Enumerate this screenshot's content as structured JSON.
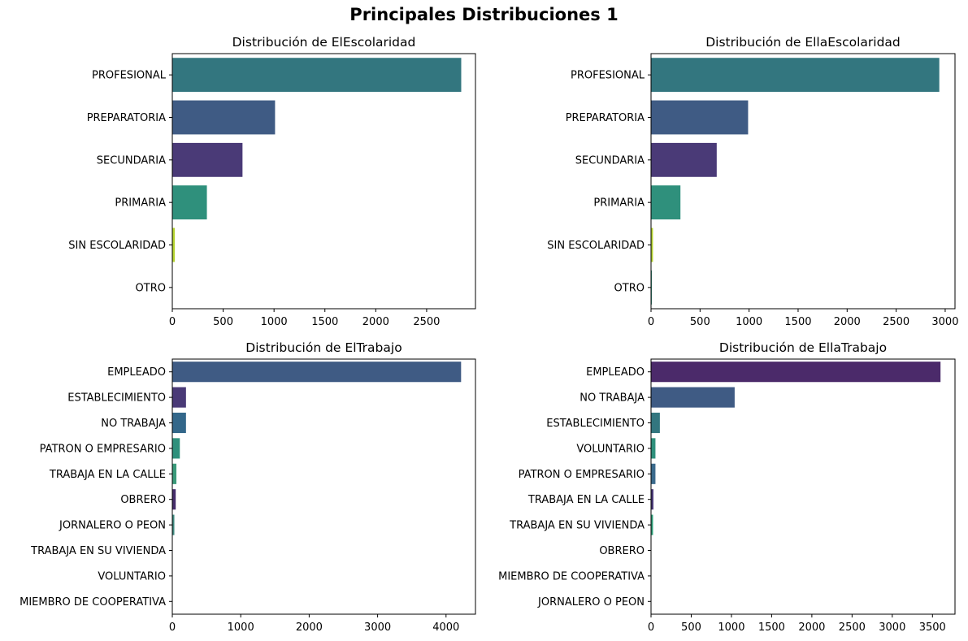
{
  "figure": {
    "title": "Principales Distribuciones 1"
  },
  "chart_data": [
    {
      "type": "bar",
      "orientation": "horizontal",
      "title": "Distribución de ElEscolaridad",
      "xlabel": "",
      "ylabel": "",
      "categories": [
        "PROFESIONAL",
        "PREPARATORIA",
        "SECUNDARIA",
        "PRIMARIA",
        "SIN ESCOLARIDAD",
        "OTRO"
      ],
      "values": [
        2840,
        1010,
        690,
        340,
        25,
        3
      ],
      "colors": [
        "#33767f",
        "#3f5b84",
        "#4a3a77",
        "#2f907c",
        "#b5d331",
        "#3a6a8c"
      ],
      "xlim": [
        0,
        2980
      ],
      "xticks": [
        0,
        500,
        1000,
        1500,
        2000,
        2500
      ]
    },
    {
      "type": "bar",
      "orientation": "horizontal",
      "title": "Distribución de EllaEscolaridad",
      "xlabel": "",
      "ylabel": "",
      "categories": [
        "PROFESIONAL",
        "PREPARATORIA",
        "SECUNDARIA",
        "PRIMARIA",
        "SIN ESCOLARIDAD",
        "OTRO"
      ],
      "values": [
        2940,
        990,
        670,
        300,
        20,
        8
      ],
      "colors": [
        "#33767f",
        "#3f5b84",
        "#4a3a77",
        "#2f907c",
        "#b5d331",
        "#2f907c"
      ],
      "xlim": [
        0,
        3100
      ],
      "xticks": [
        0,
        500,
        1000,
        1500,
        2000,
        2500,
        3000
      ]
    },
    {
      "type": "bar",
      "orientation": "horizontal",
      "title": "Distribución de ElTrabajo",
      "xlabel": "",
      "ylabel": "",
      "categories": [
        "EMPLEADO",
        "ESTABLECIMIENTO",
        "NO TRABAJA",
        "PATRON O EMPRESARIO",
        "TRABAJA EN LA CALLE",
        "OBRERO",
        "JORNALERO O PEON",
        "TRABAJA EN SU VIVIENDA",
        "VOLUNTARIO",
        "MIEMBRO DE COOPERATIVA"
      ],
      "values": [
        4220,
        200,
        200,
        110,
        60,
        50,
        30,
        3,
        2,
        1
      ],
      "colors": [
        "#3f5b84",
        "#4a3a77",
        "#33678a",
        "#2f907c",
        "#3a9a7a",
        "#462d6b",
        "#3f8a80",
        "#444444",
        "#444444",
        "#444444"
      ],
      "xlim": [
        0,
        4430
      ],
      "xticks": [
        0,
        1000,
        2000,
        3000,
        4000
      ]
    },
    {
      "type": "bar",
      "orientation": "horizontal",
      "title": "Distribución de EllaTrabajo",
      "xlabel": "",
      "ylabel": "",
      "categories": [
        "EMPLEADO",
        "NO TRABAJA",
        "ESTABLECIMIENTO",
        "VOLUNTARIO",
        "PATRON O EMPRESARIO",
        "TRABAJA EN LA CALLE",
        "TRABAJA EN SU VIVIENDA",
        "OBRERO",
        "MIEMBRO DE COOPERATIVA",
        "JORNALERO O PEON"
      ],
      "values": [
        3600,
        1040,
        110,
        55,
        55,
        30,
        25,
        2,
        2,
        1
      ],
      "colors": [
        "#4b2a6a",
        "#3f5b84",
        "#33767f",
        "#2f907c",
        "#3a6a8c",
        "#4a3a77",
        "#2fa07a",
        "#444444",
        "#444444",
        "#444444"
      ],
      "xlim": [
        0,
        3780
      ],
      "xticks": [
        0,
        500,
        1000,
        1500,
        2000,
        2500,
        3000,
        3500
      ]
    }
  ]
}
